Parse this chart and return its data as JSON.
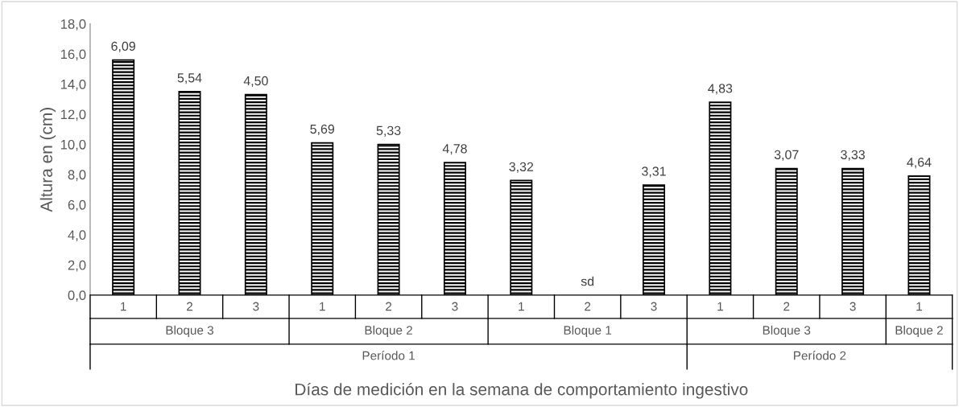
{
  "chart_data": {
    "type": "bar",
    "xlabel": "Días de medición en la semana de comportamiento ingestivo",
    "ylabel": "Altura en (cm)",
    "categories": [
      "1",
      "2",
      "3",
      "1",
      "2",
      "3",
      "1",
      "2",
      "3",
      "1",
      "2",
      "3",
      "1"
    ],
    "values": [
      15.6,
      13.5,
      13.3,
      10.1,
      10.0,
      8.8,
      7.6,
      null,
      7.3,
      12.8,
      8.4,
      8.4,
      7.9
    ],
    "color": "#000000",
    "ylim": [
      0,
      18
    ],
    "yticks": [
      {
        "value": 0,
        "label": "0,0"
      },
      {
        "value": 2,
        "label": "2,0"
      },
      {
        "value": 4,
        "label": "4,0"
      },
      {
        "value": 6,
        "label": "6,0"
      },
      {
        "value": 8,
        "label": "8,0"
      },
      {
        "value": 10,
        "label": "10,0"
      },
      {
        "value": 12,
        "label": "12,0"
      },
      {
        "value": 14,
        "label": "14,0"
      },
      {
        "value": 16,
        "label": "16,0"
      },
      {
        "value": 18,
        "label": "18,0"
      }
    ],
    "annotations": [
      "6,09",
      "5,54",
      "4,50",
      "5,69",
      "5,33",
      "4,78",
      "3,32",
      "sd",
      "3,31",
      "4,83",
      "3,07",
      "3,33",
      "4,64",
      "Bloque 3",
      "Bloque 2",
      "Bloque 1",
      "Bloque 3",
      "Bloque 2",
      "Período 1",
      "Período 2"
    ],
    "grid": false
  }
}
